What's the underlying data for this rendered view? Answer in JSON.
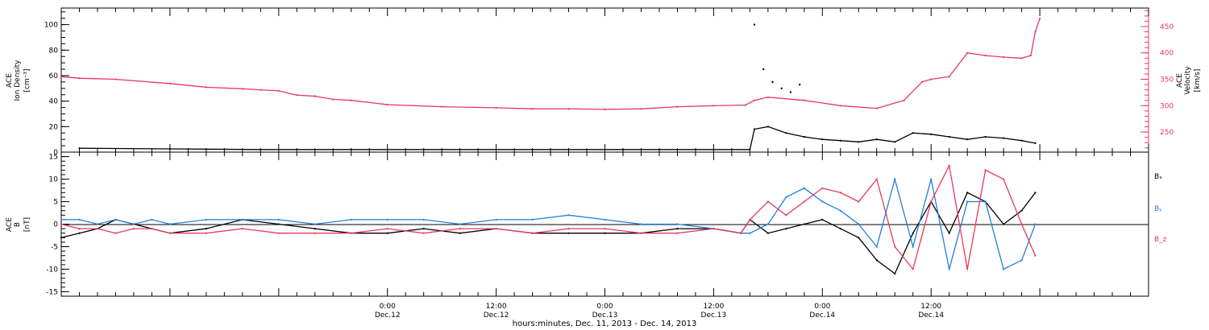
{
  "colors": {
    "black": "#000000",
    "blue": "#1f7fe0",
    "red": "#e8385f"
  },
  "chart_data": [
    {
      "type": "scatter",
      "panel": "top",
      "ylabel_lines": [
        "ACE",
        "Ion Density",
        "[cm⁻³]"
      ],
      "ylabel_right_lines": [
        "ACE",
        "Velocity",
        "[km/s]"
      ],
      "ylim": [
        0,
        113
      ],
      "y_ticks": [
        0,
        20,
        40,
        60,
        80,
        100
      ],
      "y_right_lim": [
        212,
        485
      ],
      "y_right_ticks": [
        250,
        300,
        350,
        400,
        450
      ],
      "series": [
        {
          "color_key": "black",
          "axis": "left",
          "x": [
            -10,
            0,
            10,
            20,
            30,
            40,
            50,
            60,
            64,
            64.5,
            66,
            68,
            70,
            72,
            74,
            76,
            78,
            80,
            82,
            84,
            86,
            88,
            90,
            92,
            94,
            95.5
          ],
          "y": [
            3,
            2.5,
            2,
            2,
            2,
            2,
            2,
            2,
            2,
            18,
            20,
            15,
            12,
            10,
            9,
            8,
            10,
            8,
            15,
            14,
            12,
            10,
            12,
            11,
            9,
            7
          ]
        },
        {
          "color_key": "red",
          "axis": "right",
          "x": [
            -12,
            -10,
            -6,
            0,
            4,
            8,
            10,
            12,
            14,
            16,
            18,
            20,
            24,
            30,
            36,
            40,
            44,
            48,
            52,
            56,
            60,
            63.5,
            64.5,
            66,
            70,
            74,
            78,
            81,
            83,
            84,
            86,
            88,
            90,
            92,
            94,
            95,
            95.5,
            96
          ],
          "y": [
            355,
            352,
            350,
            342,
            335,
            332,
            330,
            328,
            320,
            318,
            312,
            310,
            302,
            298,
            296,
            294,
            294,
            293,
            294,
            298,
            300,
            301,
            310,
            316,
            310,
            300,
            295,
            310,
            345,
            350,
            355,
            400,
            395,
            392,
            390,
            395,
            440,
            465
          ]
        }
      ],
      "scatter_points": [
        {
          "x": 64.5,
          "y": 100
        },
        {
          "x": 65.5,
          "y": 65
        },
        {
          "x": 66.5,
          "y": 55
        },
        {
          "x": 67.5,
          "y": 50
        },
        {
          "x": 68.5,
          "y": 47
        },
        {
          "x": 69.5,
          "y": 53
        }
      ]
    },
    {
      "type": "scatter",
      "panel": "bottom",
      "ylabel_lines": [
        "ACE",
        "B",
        "[nT]"
      ],
      "ylim": [
        -16,
        16
      ],
      "y_ticks": [
        -15,
        -10,
        -5,
        0,
        5,
        10,
        15
      ],
      "zero_line": true,
      "legend": [
        "Bₓ",
        "Bᵧ",
        "B_z"
      ],
      "legend_placement": "right",
      "series": [
        {
          "color_key": "black",
          "x": [
            -12,
            -10,
            -8,
            -6,
            -4,
            -2,
            0,
            4,
            8,
            12,
            16,
            20,
            24,
            28,
            32,
            36,
            40,
            44,
            48,
            52,
            56,
            60,
            63,
            64,
            66,
            68,
            70,
            72,
            74,
            76,
            78,
            80,
            82,
            84,
            86,
            88,
            90,
            92,
            94,
            95.5
          ],
          "y": [
            -3,
            -2,
            -1,
            1,
            0,
            -1,
            -2,
            -1,
            1,
            0,
            -1,
            -2,
            -2,
            -1,
            -2,
            -1,
            -2,
            -2,
            -2,
            -2,
            -1,
            -1,
            -2,
            1,
            -2,
            -1,
            0,
            1,
            -1,
            -3,
            -8,
            -11,
            -2,
            5,
            -2,
            7,
            5,
            0,
            3,
            7
          ]
        },
        {
          "color_key": "blue",
          "x": [
            -12,
            -10,
            -8,
            -6,
            -4,
            -2,
            0,
            4,
            8,
            12,
            16,
            20,
            24,
            28,
            32,
            36,
            40,
            44,
            48,
            52,
            56,
            60,
            63,
            64,
            66,
            68,
            70,
            72,
            74,
            76,
            78,
            80,
            82,
            84,
            86,
            88,
            90,
            92,
            94,
            95.5
          ],
          "y": [
            1,
            1,
            0,
            1,
            0,
            1,
            0,
            1,
            1,
            1,
            0,
            1,
            1,
            1,
            0,
            1,
            1,
            2,
            1,
            0,
            0,
            -1,
            -2,
            -2,
            0,
            6,
            8,
            5,
            3,
            0,
            -5,
            10,
            -5,
            10,
            -10,
            5,
            5,
            -10,
            -8,
            0
          ]
        },
        {
          "color_key": "red",
          "x": [
            -12,
            -10,
            -8,
            -6,
            -4,
            -2,
            0,
            4,
            8,
            12,
            16,
            20,
            24,
            28,
            32,
            36,
            40,
            44,
            48,
            52,
            56,
            60,
            63,
            64,
            66,
            68,
            70,
            72,
            74,
            76,
            78,
            80,
            82,
            84,
            86,
            88,
            90,
            92,
            94,
            95.5
          ],
          "y": [
            0,
            -1,
            -1,
            -2,
            -1,
            -1,
            -2,
            -2,
            -1,
            -2,
            -2,
            -2,
            -1,
            -2,
            -1,
            -1,
            -2,
            -1,
            -1,
            -2,
            -2,
            -1,
            -2,
            1,
            5,
            2,
            5,
            8,
            7,
            5,
            10,
            -5,
            -10,
            5,
            13,
            -10,
            12,
            10,
            0,
            -7
          ]
        }
      ]
    }
  ],
  "x_axis": {
    "tick_labels": [
      {
        "x": 24,
        "time": "0:00",
        "date": "Dec.12"
      },
      {
        "x": 36,
        "time": "12:00",
        "date": "Dec.12"
      },
      {
        "x": 48,
        "time": "0:00",
        "date": "Dec.13"
      },
      {
        "x": 60,
        "time": "12:00",
        "date": "Dec.13"
      },
      {
        "x": 72,
        "time": "0:00",
        "date": "Dec.14"
      },
      {
        "x": 84,
        "time": "12:00",
        "date": "Dec.14"
      }
    ],
    "xlabel": "hours:minutes, Dec. 11, 2013 - Dec. 14, 2013"
  }
}
